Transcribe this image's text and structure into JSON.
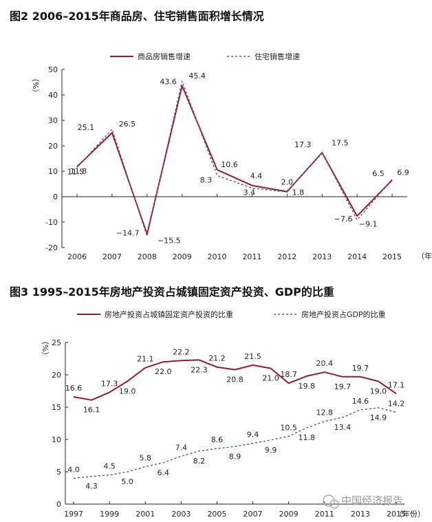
{
  "chart_data": [
    {
      "type": "line",
      "title": "图2   2006–2015年商品房、住宅销售面积增长情况",
      "ylabel": "（%）",
      "xlabel": "（年份）",
      "ylim": [
        -20,
        50
      ],
      "yticks": [
        -20,
        -10,
        0,
        10,
        20,
        30,
        40,
        50
      ],
      "categories": [
        "2006",
        "2007",
        "2008",
        "2009",
        "2010",
        "2011",
        "2012",
        "2013",
        "2014",
        "2015"
      ],
      "series": [
        {
          "name": "商品房销售增速",
          "color": "#a0162b",
          "style": "solid",
          "values": [
            11.8,
            25.1,
            -14.7,
            43.6,
            10.6,
            4.4,
            2.0,
            17.3,
            -7.6,
            6.5
          ]
        },
        {
          "name": "住宅销售增速",
          "color": "#4a6a86",
          "style": "dashed",
          "values": [
            11.5,
            26.5,
            -15.5,
            45.4,
            8.3,
            3.4,
            1.8,
            17.5,
            -9.1,
            6.9
          ]
        }
      ]
    },
    {
      "type": "line",
      "title": "图3   1995–2015年房地产投资占城镇固定资产投资、GDP的比重",
      "ylabel": "（%）",
      "xlabel": "（年份）",
      "ylim": [
        0,
        25
      ],
      "yticks": [
        0,
        5,
        10,
        15,
        20,
        25
      ],
      "x": [
        1997,
        1998,
        1999,
        2000,
        2001,
        2002,
        2003,
        2004,
        2005,
        2006,
        2007,
        2008,
        2009,
        2010,
        2011,
        2012,
        2013,
        2014,
        2015
      ],
      "xticks": [
        "1997",
        "1999",
        "2001",
        "2003",
        "2005",
        "2007",
        "2009",
        "2011",
        "2013",
        "2015"
      ],
      "series": [
        {
          "name": "房地产投资占城镇固定资产投资的比重",
          "color": "#a0162b",
          "style": "solid",
          "values": [
            16.6,
            16.1,
            17.3,
            19.0,
            21.1,
            22.0,
            22.2,
            22.3,
            21.2,
            20.8,
            21.5,
            21.0,
            18.7,
            19.8,
            20.4,
            19.7,
            19.7,
            19.0,
            17.1
          ]
        },
        {
          "name": "房地产投资占GDP的比重",
          "color": "#4a6a86",
          "style": "dashed",
          "values": [
            4.0,
            4.3,
            4.5,
            5.0,
            5.8,
            6.4,
            7.4,
            8.2,
            8.6,
            8.9,
            9.4,
            9.9,
            10.5,
            11.8,
            12.8,
            13.4,
            14.6,
            14.9,
            14.2
          ]
        }
      ]
    }
  ],
  "watermark": "中国经济报告"
}
